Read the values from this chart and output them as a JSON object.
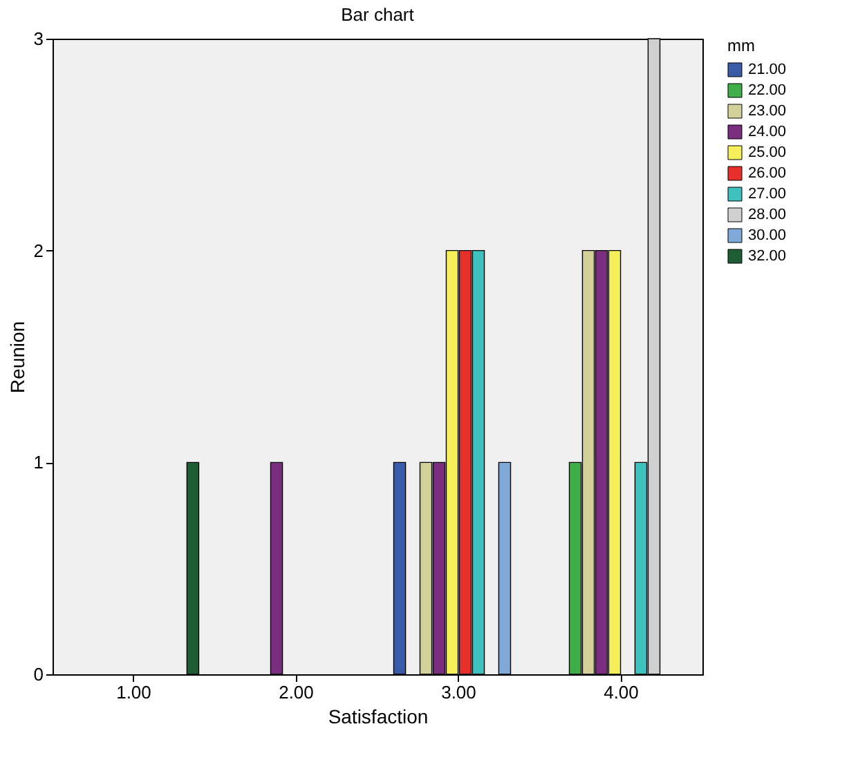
{
  "chart_data": {
    "type": "bar",
    "title": "Bar chart",
    "xlabel": "Satisfaction",
    "ylabel": "Reunion",
    "legend_title": "mm",
    "categories": [
      "1.00",
      "2.00",
      "3.00",
      "4.00"
    ],
    "series": [
      {
        "name": "21.00",
        "color": "#3a5ba8",
        "values": [
          null,
          null,
          1,
          null
        ]
      },
      {
        "name": "22.00",
        "color": "#3fae49",
        "values": [
          null,
          null,
          null,
          1
        ]
      },
      {
        "name": "23.00",
        "color": "#d4d09a",
        "values": [
          null,
          null,
          1,
          2
        ]
      },
      {
        "name": "24.00",
        "color": "#7b2d7f",
        "values": [
          null,
          1,
          1,
          2
        ]
      },
      {
        "name": "25.00",
        "color": "#f5f05a",
        "values": [
          null,
          null,
          2,
          2
        ]
      },
      {
        "name": "26.00",
        "color": "#e8302a",
        "values": [
          null,
          null,
          2,
          null
        ]
      },
      {
        "name": "27.00",
        "color": "#3fc1c0",
        "values": [
          null,
          null,
          2,
          1
        ]
      },
      {
        "name": "28.00",
        "color": "#d0d0d0",
        "values": [
          null,
          null,
          null,
          3
        ]
      },
      {
        "name": "30.00",
        "color": "#7fa9d8",
        "values": [
          null,
          null,
          1,
          null
        ]
      },
      {
        "name": "32.00",
        "color": "#1f5e34",
        "values": [
          1,
          null,
          null,
          null
        ]
      }
    ],
    "ylim": [
      0,
      3
    ],
    "yticks": [
      0,
      1,
      2,
      3
    ],
    "grid": false,
    "legend": "top right"
  }
}
